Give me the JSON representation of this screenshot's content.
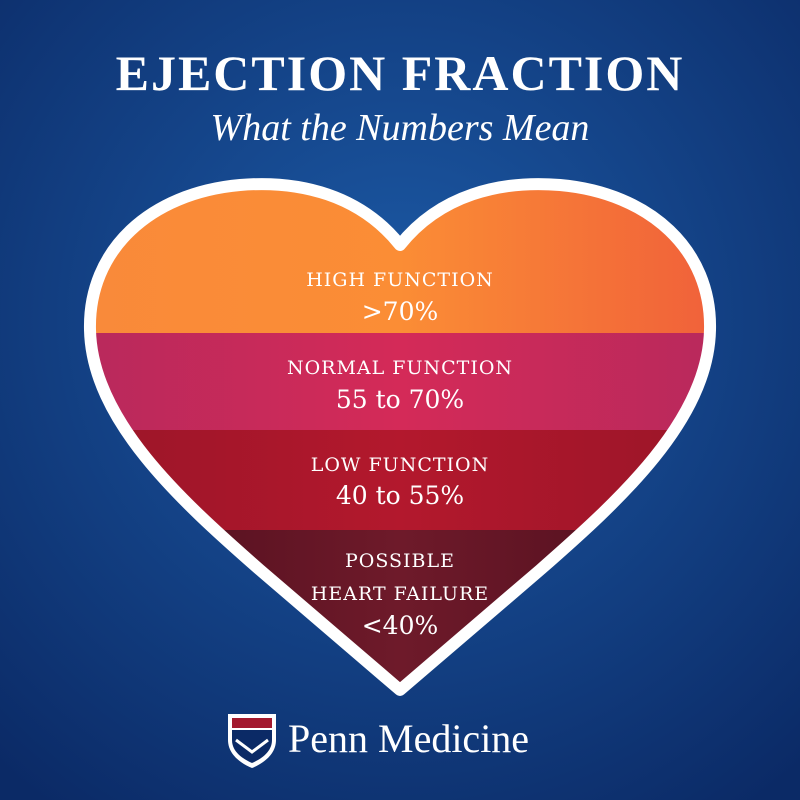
{
  "header": {
    "title": "EJECTION FRACTION",
    "subtitle": "What the Numbers Mean"
  },
  "bands": [
    {
      "label_lines": [
        "HIGH FUNCTION"
      ],
      "range": ">70%"
    },
    {
      "label_lines": [
        "NORMAL FUNCTION"
      ],
      "range": "55 to 70%"
    },
    {
      "label_lines": [
        "LOW FUNCTION"
      ],
      "range": "40 to 55%"
    },
    {
      "label_lines": [
        "POSSIBLE",
        "HEART FAILURE"
      ],
      "range": "<40%"
    }
  ],
  "footer": {
    "logo_text": "Penn Medicine"
  }
}
